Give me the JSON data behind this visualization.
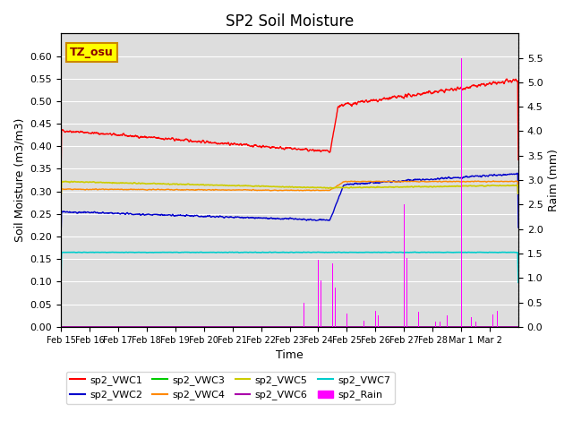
{
  "title": "SP2 Soil Moisture",
  "ylabel_left": "Soil Moisture (m3/m3)",
  "ylabel_right": "Raim (mm)",
  "xlabel": "Time",
  "ylim_left": [
    0.0,
    0.65
  ],
  "ylim_right": [
    0.0,
    6.0
  ],
  "x_tick_labels": [
    "Feb 15",
    "Feb 16",
    "Feb 17",
    "Feb 18",
    "Feb 19",
    "Feb 20",
    "Feb 21",
    "Feb 22",
    "Feb 23",
    "Feb 24",
    "Feb 25",
    "Feb 26",
    "Feb 27",
    "Feb 28",
    "Mar 1",
    "Mar 2"
  ],
  "x_tick_positions": [
    0,
    1,
    2,
    3,
    4,
    5,
    6,
    7,
    8,
    9,
    10,
    11,
    12,
    13,
    14,
    15
  ],
  "colors": {
    "VWC1": "#ff0000",
    "VWC2": "#0000cc",
    "VWC3": "#00cc00",
    "VWC4": "#ff8800",
    "VWC5": "#cccc00",
    "VWC6": "#aa00aa",
    "VWC7": "#00cccc",
    "Rain": "#ff00ff"
  },
  "background_color": "#dddddd",
  "tz_label": "TZ_osu",
  "tz_box_color": "#ffff00",
  "tz_box_edge": "#cc8800"
}
